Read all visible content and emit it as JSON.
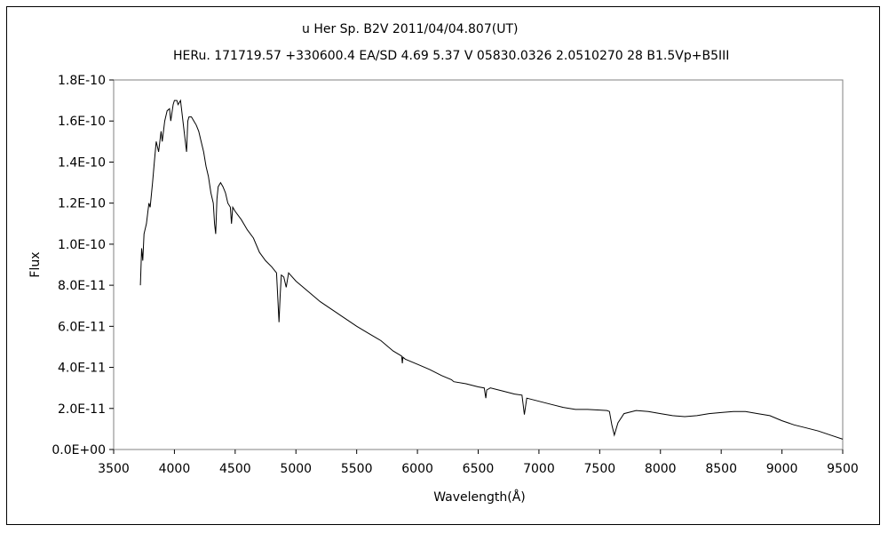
{
  "chart_data": {
    "type": "line",
    "title": "u Her    Sp. B2V    2011/04/04.807(UT)",
    "subtitle": "HERu. 171719.57 +330600.4 EA/SD 4.69 5.37 V 05830.0326 2.0510270 28 B1.5Vp+B5III",
    "xlabel": "Wavelength(Å)",
    "ylabel": "Flux",
    "xlim": [
      3500,
      9500
    ],
    "ylim": [
      0,
      1.8e-10
    ],
    "xticks": [
      "3500",
      "4000",
      "4500",
      "5000",
      "5500",
      "6000",
      "6500",
      "7000",
      "7500",
      "8000",
      "8500",
      "9000",
      "9500"
    ],
    "yticks": [
      "0.0E+00",
      "2.0E-11",
      "4.0E-11",
      "6.0E-11",
      "8.0E-11",
      "1.0E-10",
      "1.2E-10",
      "1.4E-10",
      "1.6E-10",
      "1.8E-10"
    ],
    "grid": false,
    "series": [
      {
        "color": "#000000",
        "x": [
          3720,
          3730,
          3740,
          3750,
          3770,
          3790,
          3800,
          3820,
          3835,
          3850,
          3870,
          3890,
          3900,
          3920,
          3940,
          3960,
          3970,
          3990,
          4000,
          4020,
          4030,
          4050,
          4070,
          4090,
          4100,
          4110,
          4120,
          4140,
          4160,
          4180,
          4200,
          4220,
          4240,
          4260,
          4280,
          4300,
          4320,
          4330,
          4340,
          4350,
          4360,
          4380,
          4400,
          4420,
          4440,
          4460,
          4470,
          4480,
          4500,
          4550,
          4600,
          4650,
          4700,
          4750,
          4800,
          4840,
          4850,
          4861,
          4870,
          4880,
          4900,
          4920,
          4940,
          5000,
          5100,
          5200,
          5300,
          5400,
          5500,
          5600,
          5700,
          5800,
          5870,
          5876,
          5880,
          5900,
          6000,
          6100,
          6200,
          6280,
          6300,
          6400,
          6500,
          6550,
          6563,
          6570,
          6600,
          6700,
          6800,
          6860,
          6870,
          6880,
          6900,
          7000,
          7100,
          7200,
          7300,
          7400,
          7500,
          7560,
          7580,
          7600,
          7620,
          7650,
          7700,
          7800,
          7900,
          8000,
          8100,
          8200,
          8300,
          8400,
          8500,
          8600,
          8700,
          8800,
          8900,
          9000,
          9100,
          9200,
          9300,
          9400,
          9500
        ],
        "y": [
          8e-11,
          9.8e-11,
          9.2e-11,
          1.05e-10,
          1.1e-10,
          1.2e-10,
          1.18e-10,
          1.3e-10,
          1.4e-10,
          1.5e-10,
          1.45e-10,
          1.55e-10,
          1.5e-10,
          1.6e-10,
          1.65e-10,
          1.66e-10,
          1.6e-10,
          1.68e-10,
          1.7e-10,
          1.7e-10,
          1.68e-10,
          1.7e-10,
          1.6e-10,
          1.5e-10,
          1.45e-10,
          1.6e-10,
          1.62e-10,
          1.62e-10,
          1.6e-10,
          1.58e-10,
          1.55e-10,
          1.5e-10,
          1.45e-10,
          1.38e-10,
          1.33e-10,
          1.25e-10,
          1.2e-10,
          1.1e-10,
          1.05e-10,
          1.22e-10,
          1.28e-10,
          1.3e-10,
          1.28e-10,
          1.25e-10,
          1.2e-10,
          1.18e-10,
          1.1e-10,
          1.18e-10,
          1.16e-10,
          1.12e-10,
          1.07e-10,
          1.03e-10,
          9.6e-11,
          9.2e-11,
          8.9e-11,
          8.6e-11,
          7.5e-11,
          6.2e-11,
          7.5e-11,
          8.5e-11,
          8.4e-11,
          7.9e-11,
          8.6e-11,
          8.2e-11,
          7.7e-11,
          7.2e-11,
          6.8e-11,
          6.4e-11,
          6e-11,
          5.65e-11,
          5.3e-11,
          4.8e-11,
          4.55e-11,
          4.2e-11,
          4.5e-11,
          4.4e-11,
          4.15e-11,
          3.9e-11,
          3.6e-11,
          3.4e-11,
          3.3e-11,
          3.2e-11,
          3.05e-11,
          3e-11,
          2.5e-11,
          2.9e-11,
          3e-11,
          2.85e-11,
          2.7e-11,
          2.65e-11,
          2.2e-11,
          1.7e-11,
          2.5e-11,
          2.35e-11,
          2.2e-11,
          2.05e-11,
          1.95e-11,
          1.95e-11,
          1.92e-11,
          1.9e-11,
          1.85e-11,
          1.2e-11,
          7e-12,
          1.3e-11,
          1.75e-11,
          1.9e-11,
          1.85e-11,
          1.75e-11,
          1.65e-11,
          1.6e-11,
          1.65e-11,
          1.75e-11,
          1.8e-11,
          1.85e-11,
          1.85e-11,
          1.75e-11,
          1.65e-11,
          1.4e-11,
          1.2e-11,
          1.05e-11,
          9e-12,
          7e-12,
          5e-12
        ]
      }
    ]
  }
}
